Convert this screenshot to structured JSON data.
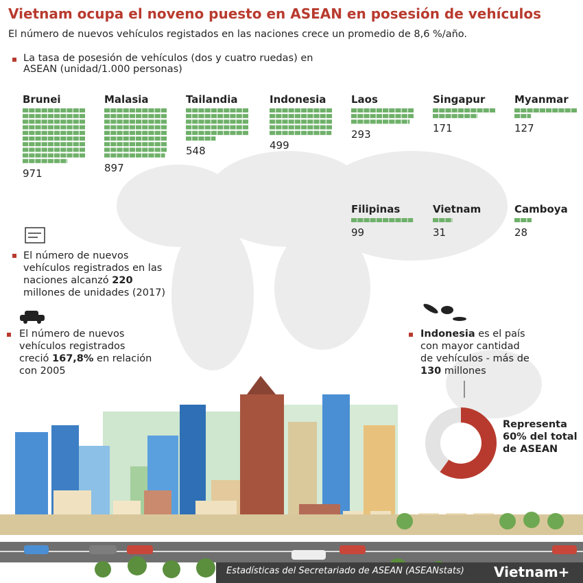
{
  "header": {
    "title": "Vietnam ocupa el noveno puesto en ASEAN en posesión de vehículos",
    "subtitle": "El número de nuevos vehículos registados en las naciones crece un promedio de 8,6 %/año."
  },
  "chart_data": [
    {
      "type": "pictogram",
      "title": "La tasa de posesión de vehículos (dos y cuatro ruedas) en ASEAN (unidad/1.000 personas)",
      "color": "#6fb06a",
      "categories": [
        "Brunei",
        "Malasia",
        "Tailandia",
        "Indonesia",
        "Laos",
        "Singapur",
        "Myanmar",
        "Filipinas",
        "Vietnam",
        "Camboya"
      ],
      "values": [
        971,
        897,
        548,
        499,
        293,
        171,
        127,
        99,
        31,
        28
      ]
    },
    {
      "type": "pie",
      "annotation": "Representa 60% del total de ASEAN",
      "values": [
        60
      ],
      "color": "#b83a2e",
      "rest_color": "#e3e3e3"
    }
  ],
  "notes": [
    {
      "parts": [
        "El número de nuevos vehículos registrados en las naciones alcanzó ",
        "220",
        " millones de unidades (2017)"
      ]
    },
    {
      "parts": [
        "El número de nuevos vehículos registrados creció ",
        "167,8%",
        " en relación con 2005"
      ]
    },
    {
      "parts": [
        "Indonesia",
        " es el país con mayor cantidad de vehículos - más de ",
        "130",
        " millones"
      ]
    }
  ],
  "source": "Estadísticas del Secretariado de ASEAN (ASEANstats)",
  "logo": "Vietnam+"
}
